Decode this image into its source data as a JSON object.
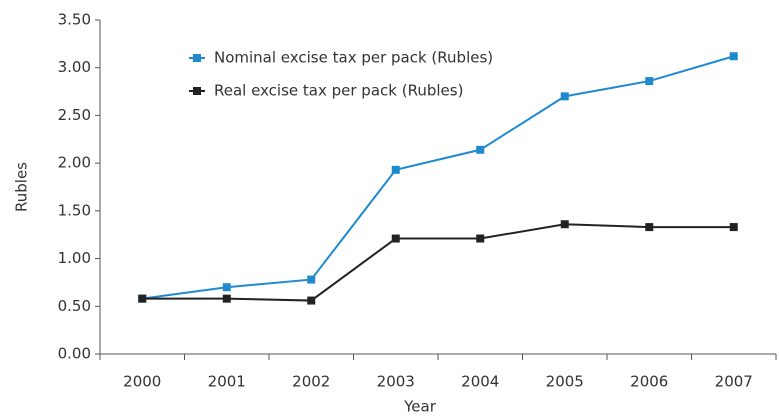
{
  "chart_data": {
    "type": "line",
    "x_label": "Year",
    "y_label": "Rubles",
    "categories": [
      "2000",
      "2001",
      "2002",
      "2003",
      "2004",
      "2005",
      "2006",
      "2007"
    ],
    "series": [
      {
        "name": "Nominal excise tax per pack (Rubles)",
        "color": "#1f8ad0",
        "values": [
          0.58,
          0.7,
          0.78,
          1.93,
          2.14,
          2.7,
          2.86,
          3.12
        ]
      },
      {
        "name": "Real excise tax per pack (Rubles)",
        "color": "#222222",
        "values": [
          0.58,
          0.58,
          0.56,
          1.21,
          1.21,
          1.36,
          1.33,
          1.33
        ]
      }
    ],
    "ylim": [
      0,
      3.5
    ],
    "yticks": [
      {
        "value": 0,
        "label": "0.00"
      },
      {
        "value": 0.5,
        "label": "0.50"
      },
      {
        "value": 1,
        "label": "1.00"
      },
      {
        "value": 1.5,
        "label": "1.50"
      },
      {
        "value": 2,
        "label": "2.00"
      },
      {
        "value": 2.5,
        "label": "2.50"
      },
      {
        "value": 3,
        "label": "3.00"
      },
      {
        "value": 3.5,
        "label": "3.50"
      }
    ],
    "grid": false,
    "legend": "top-left"
  }
}
